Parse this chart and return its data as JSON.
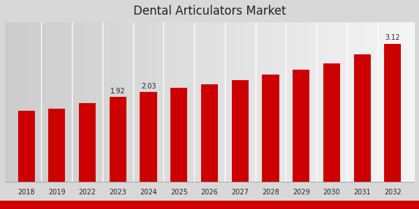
{
  "title": "Dental Articulators Market",
  "categories": [
    "2018",
    "2019",
    "2022",
    "2023",
    "2024",
    "2025",
    "2026",
    "2027",
    "2028",
    "2029",
    "2030",
    "2031",
    "2032"
  ],
  "values": [
    1.6,
    1.65,
    1.78,
    1.92,
    2.03,
    2.12,
    2.2,
    2.3,
    2.42,
    2.54,
    2.67,
    2.88,
    3.12
  ],
  "bar_color": "#cc0000",
  "label_values": {
    "2023": "1.92",
    "2024": "2.03",
    "2032": "3.12"
  },
  "bg_left": "#d0d0d0",
  "bg_right": "#f5f5f5",
  "ylim": [
    0,
    3.6
  ],
  "title_fontsize": 12,
  "label_fontsize": 7,
  "axis_label_fontsize": 7.5,
  "tick_fontsize": 7,
  "bottom_bar_color": "#cc0000",
  "grid_color": "#ffffff",
  "spine_color": "#aaaaaa"
}
